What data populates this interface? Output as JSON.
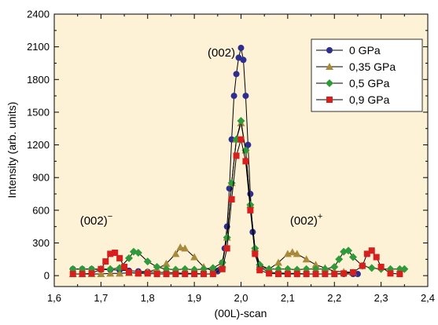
{
  "chart_data": {
    "type": "line",
    "title": "",
    "xlabel": "(00L)-scan",
    "ylabel": "Intensity (arb. units)",
    "xlim": [
      1.6,
      2.4
    ],
    "ylim": [
      -100,
      2400
    ],
    "x_ticks": [
      "1,6",
      "1,7",
      "1,8",
      "1,9",
      "2,0",
      "2,1",
      "2,2",
      "2,3",
      "2,4"
    ],
    "y_ticks": [
      "0",
      "300",
      "600",
      "900",
      "1200",
      "1500",
      "1800",
      "2100",
      "2400"
    ],
    "background_color": "#FDF1D6",
    "legend_position": "top-right",
    "annotations": [
      {
        "text": "(002)",
        "x": 1.958,
        "y": 2010
      },
      {
        "text": "(002)",
        "sup": "−",
        "x": 1.69,
        "y": 470
      },
      {
        "text": "(002)",
        "sup": "+",
        "x": 2.14,
        "y": 470
      }
    ],
    "series": [
      {
        "name": "0 GPa",
        "color": "#2E2E8F",
        "marker": "circle",
        "points": [
          [
            1.64,
            60
          ],
          [
            1.66,
            60
          ],
          [
            1.68,
            60
          ],
          [
            1.7,
            55
          ],
          [
            1.72,
            55
          ],
          [
            1.74,
            50
          ],
          [
            1.76,
            45
          ],
          [
            1.78,
            40
          ],
          [
            1.8,
            35
          ],
          [
            1.82,
            30
          ],
          [
            1.84,
            30
          ],
          [
            1.86,
            25
          ],
          [
            1.88,
            20
          ],
          [
            1.9,
            20
          ],
          [
            1.92,
            15
          ],
          [
            1.94,
            15
          ],
          [
            1.95,
            40
          ],
          [
            1.96,
            120
          ],
          [
            1.965,
            250
          ],
          [
            1.97,
            450
          ],
          [
            1.975,
            800
          ],
          [
            1.98,
            1250
          ],
          [
            1.985,
            1650
          ],
          [
            1.99,
            1850
          ],
          [
            1.995,
            2000
          ],
          [
            2.0,
            2090
          ],
          [
            2.005,
            1980
          ],
          [
            2.01,
            1650
          ],
          [
            2.015,
            1200
          ],
          [
            2.02,
            750
          ],
          [
            2.025,
            400
          ],
          [
            2.03,
            200
          ],
          [
            2.04,
            80
          ],
          [
            2.06,
            30
          ],
          [
            2.08,
            25
          ],
          [
            2.1,
            20
          ],
          [
            2.12,
            20
          ],
          [
            2.14,
            15
          ],
          [
            2.16,
            15
          ],
          [
            2.18,
            15
          ],
          [
            2.2,
            15
          ],
          [
            2.22,
            15
          ],
          [
            2.24,
            15
          ],
          [
            2.25,
            15
          ]
        ]
      },
      {
        "name": "0,35 GPa",
        "color": "#A88A3A",
        "marker": "triangle",
        "points": [
          [
            1.64,
            15
          ],
          [
            1.66,
            15
          ],
          [
            1.68,
            15
          ],
          [
            1.7,
            15
          ],
          [
            1.72,
            20
          ],
          [
            1.74,
            20
          ],
          [
            1.76,
            25
          ],
          [
            1.78,
            25
          ],
          [
            1.8,
            35
          ],
          [
            1.82,
            60
          ],
          [
            1.84,
            110
          ],
          [
            1.86,
            200
          ],
          [
            1.87,
            260
          ],
          [
            1.88,
            250
          ],
          [
            1.9,
            170
          ],
          [
            1.92,
            80
          ],
          [
            1.94,
            40
          ],
          [
            1.96,
            100
          ],
          [
            1.97,
            350
          ],
          [
            1.98,
            850
          ],
          [
            1.99,
            1250
          ],
          [
            2.0,
            1400
          ],
          [
            2.01,
            1150
          ],
          [
            2.02,
            650
          ],
          [
            2.03,
            250
          ],
          [
            2.04,
            80
          ],
          [
            2.06,
            60
          ],
          [
            2.08,
            120
          ],
          [
            2.1,
            200
          ],
          [
            2.11,
            215
          ],
          [
            2.12,
            200
          ],
          [
            2.14,
            150
          ],
          [
            2.16,
            100
          ],
          [
            2.18,
            70
          ],
          [
            2.2,
            40
          ],
          [
            2.22,
            35
          ],
          [
            2.24,
            30
          ]
        ]
      },
      {
        "name": "0,5 GPa",
        "color": "#2E9A3A",
        "marker": "diamond",
        "points": [
          [
            1.64,
            60
          ],
          [
            1.66,
            60
          ],
          [
            1.68,
            60
          ],
          [
            1.7,
            60
          ],
          [
            1.72,
            60
          ],
          [
            1.74,
            70
          ],
          [
            1.76,
            160
          ],
          [
            1.77,
            220
          ],
          [
            1.78,
            210
          ],
          [
            1.8,
            130
          ],
          [
            1.82,
            80
          ],
          [
            1.84,
            60
          ],
          [
            1.86,
            55
          ],
          [
            1.88,
            60
          ],
          [
            1.9,
            55
          ],
          [
            1.92,
            60
          ],
          [
            1.94,
            70
          ],
          [
            1.96,
            120
          ],
          [
            1.97,
            350
          ],
          [
            1.98,
            850
          ],
          [
            1.99,
            1250
          ],
          [
            2.0,
            1420
          ],
          [
            2.01,
            1150
          ],
          [
            2.02,
            650
          ],
          [
            2.03,
            250
          ],
          [
            2.04,
            100
          ],
          [
            2.06,
            60
          ],
          [
            2.08,
            60
          ],
          [
            2.1,
            60
          ],
          [
            2.12,
            55
          ],
          [
            2.14,
            60
          ],
          [
            2.16,
            60
          ],
          [
            2.18,
            60
          ],
          [
            2.2,
            80
          ],
          [
            2.21,
            150
          ],
          [
            2.22,
            220
          ],
          [
            2.23,
            230
          ],
          [
            2.24,
            170
          ],
          [
            2.26,
            90
          ],
          [
            2.28,
            70
          ],
          [
            2.3,
            60
          ],
          [
            2.32,
            60
          ],
          [
            2.34,
            60
          ],
          [
            2.35,
            60
          ]
        ]
      },
      {
        "name": "0,9 GPa",
        "color": "#D91E1E",
        "marker": "square",
        "points": [
          [
            1.64,
            15
          ],
          [
            1.66,
            15
          ],
          [
            1.68,
            20
          ],
          [
            1.7,
            60
          ],
          [
            1.71,
            130
          ],
          [
            1.72,
            200
          ],
          [
            1.73,
            210
          ],
          [
            1.74,
            160
          ],
          [
            1.75,
            80
          ],
          [
            1.76,
            30
          ],
          [
            1.78,
            20
          ],
          [
            1.8,
            20
          ],
          [
            1.82,
            15
          ],
          [
            1.84,
            15
          ],
          [
            1.86,
            15
          ],
          [
            1.88,
            15
          ],
          [
            1.9,
            15
          ],
          [
            1.92,
            15
          ],
          [
            1.94,
            15
          ],
          [
            1.96,
            60
          ],
          [
            1.97,
            250
          ],
          [
            1.98,
            700
          ],
          [
            1.99,
            1100
          ],
          [
            2.0,
            1250
          ],
          [
            2.01,
            1050
          ],
          [
            2.02,
            600
          ],
          [
            2.03,
            200
          ],
          [
            2.04,
            50
          ],
          [
            2.06,
            20
          ],
          [
            2.08,
            15
          ],
          [
            2.1,
            15
          ],
          [
            2.12,
            15
          ],
          [
            2.14,
            15
          ],
          [
            2.16,
            15
          ],
          [
            2.18,
            15
          ],
          [
            2.2,
            15
          ],
          [
            2.22,
            20
          ],
          [
            2.24,
            30
          ],
          [
            2.26,
            90
          ],
          [
            2.27,
            200
          ],
          [
            2.28,
            230
          ],
          [
            2.29,
            170
          ],
          [
            2.3,
            80
          ],
          [
            2.32,
            20
          ],
          [
            2.34,
            15
          ]
        ]
      }
    ]
  }
}
